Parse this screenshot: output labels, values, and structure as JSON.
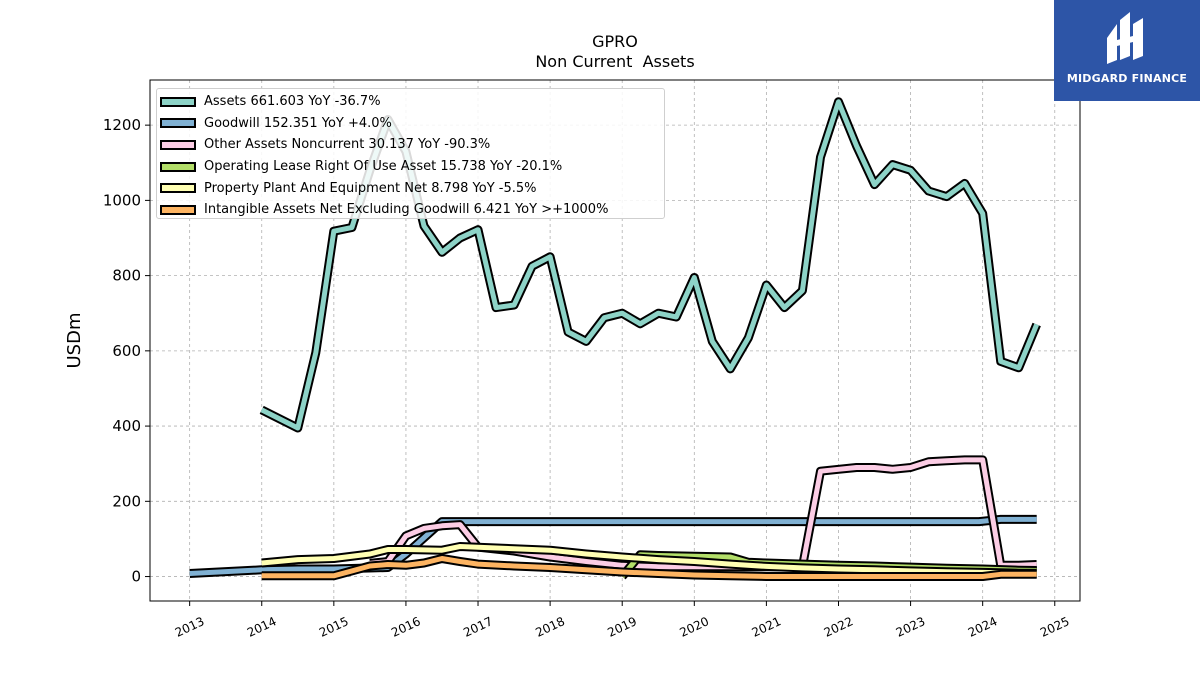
{
  "chart_data": {
    "type": "line",
    "title": "GPRO",
    "subtitle": "Non Current  Assets",
    "xlabel": "",
    "ylabel": "USDm",
    "xlim": [
      2012.45,
      2025.35
    ],
    "ylim": [
      -65,
      1320
    ],
    "x_ticks": [
      "2013",
      "2014",
      "2015",
      "2016",
      "2017",
      "2018",
      "2019",
      "2020",
      "2021",
      "2022",
      "2023",
      "2024",
      "2025"
    ],
    "y_ticks": [
      "0",
      "200",
      "400",
      "600",
      "800",
      "1000",
      "1200"
    ],
    "grid": true,
    "legend_position": "top-left",
    "series": [
      {
        "name": "Assets  661.603 YoY -36.7%",
        "color": "#8dd3c7",
        "x": [
          2014.0,
          2014.5,
          2014.75,
          2015.0,
          2015.25,
          2015.5,
          2015.75,
          2016.0,
          2016.25,
          2016.5,
          2016.75,
          2017.0,
          2017.25,
          2017.5,
          2017.75,
          2018.0,
          2018.25,
          2018.5,
          2018.75,
          2019.0,
          2019.25,
          2019.5,
          2019.75,
          2020.0,
          2020.25,
          2020.5,
          2020.75,
          2021.0,
          2021.25,
          2021.5,
          2021.75,
          2022.0,
          2022.25,
          2022.5,
          2022.75,
          2023.0,
          2023.25,
          2023.5,
          2023.75,
          2024.0,
          2024.25,
          2024.5,
          2024.75
        ],
        "values": [
          443,
          395,
          595,
          918,
          928,
          1080,
          1215,
          1130,
          932,
          862,
          900,
          922,
          715,
          722,
          825,
          850,
          650,
          625,
          688,
          700,
          672,
          700,
          690,
          795,
          625,
          552,
          635,
          775,
          715,
          760,
          1115,
          1262,
          1145,
          1042,
          1095,
          1080,
          1025,
          1010,
          1045,
          965,
          572,
          555,
          670
        ]
      },
      {
        "name": "Goodwill  152.351 YoY +4.0%",
        "color": "#80b1d3",
        "x": [
          2013.0,
          2014.0,
          2014.5,
          2015.0,
          2015.75,
          2016.0,
          2016.5,
          2017.0,
          2018.0,
          2019.0,
          2020.0,
          2021.0,
          2022.0,
          2023.0,
          2023.95,
          2024.25,
          2024.5,
          2024.75
        ],
        "values": [
          8,
          18,
          20,
          20,
          24,
          60,
          146,
          146,
          146,
          146,
          146,
          146,
          146,
          146,
          146,
          152,
          152,
          152
        ]
      },
      {
        "name": "Other Assets Noncurrent  30.137 YoY -90.3%",
        "color": "#fccde5",
        "x": [
          2015.5,
          2015.75,
          2016.0,
          2016.25,
          2016.5,
          2016.75,
          2017.0,
          2017.5,
          2018.0,
          2018.5,
          2019.0,
          2019.5,
          2020.0,
          2020.5,
          2021.0,
          2021.5,
          2021.75,
          2022.0,
          2022.25,
          2022.5,
          2022.75,
          2023.0,
          2023.25,
          2023.5,
          2023.75,
          2024.0,
          2024.25,
          2024.5,
          2024.75
        ],
        "values": [
          35,
          40,
          108,
          128,
          135,
          138,
          78,
          68,
          52,
          40,
          30,
          26,
          26,
          26,
          26,
          26,
          280,
          285,
          290,
          290,
          285,
          290,
          305,
          308,
          310,
          310,
          30,
          30,
          32
        ]
      },
      {
        "name": "Operating Lease Right Of Use Asset  15.738 YoY -20.1%",
        "color": "#b3de69",
        "x": [
          2019.0,
          2019.25,
          2019.5,
          2019.75,
          2020.0,
          2020.25,
          2020.5,
          2020.75,
          2021.0,
          2021.5,
          2022.0,
          2022.5,
          2023.0,
          2023.5,
          2024.0,
          2024.5,
          2024.75
        ],
        "values": [
          0,
          58,
          56,
          55,
          54,
          53,
          52,
          38,
          36,
          33,
          30,
          28,
          25,
          22,
          20,
          17,
          16
        ]
      },
      {
        "name": "Property Plant And Equipment Net  8.798 YoY -5.5%",
        "color": "#ffffb3",
        "x": [
          2014.0,
          2014.5,
          2015.0,
          2015.5,
          2015.75,
          2016.0,
          2016.5,
          2016.75,
          2017.0,
          2017.5,
          2018.0,
          2018.5,
          2019.0,
          2019.5,
          2020.0,
          2020.5,
          2021.0,
          2021.5,
          2022.0,
          2022.5,
          2023.0,
          2023.5,
          2024.0,
          2024.5,
          2024.75
        ],
        "values": [
          36,
          45,
          48,
          60,
          72,
          72,
          70,
          80,
          78,
          74,
          70,
          60,
          52,
          45,
          40,
          33,
          27,
          23,
          20,
          18,
          15,
          13,
          11,
          9,
          9
        ]
      },
      {
        "name": "Intangible Assets Net Excluding Goodwill  6.421 YoY >+1000%",
        "color": "#fdb462",
        "x": [
          2014.0,
          2014.5,
          2015.0,
          2015.25,
          2015.5,
          2015.75,
          2016.0,
          2016.25,
          2016.5,
          2016.75,
          2017.0,
          2017.5,
          2018.0,
          2018.5,
          2019.0,
          2019.5,
          2020.0,
          2020.5,
          2021.0,
          2022.0,
          2023.0,
          2024.0,
          2024.25,
          2024.5,
          2024.75
        ],
        "values": [
          2,
          2,
          2,
          15,
          28,
          32,
          30,
          36,
          48,
          40,
          33,
          28,
          24,
          18,
          12,
          8,
          4,
          2,
          0,
          0,
          0,
          0,
          6,
          6,
          6
        ]
      }
    ]
  },
  "logo": {
    "brand_name": "MIDGARD FINANCE",
    "background": "#2d55a7",
    "icon": "midgard-logo-icon"
  }
}
